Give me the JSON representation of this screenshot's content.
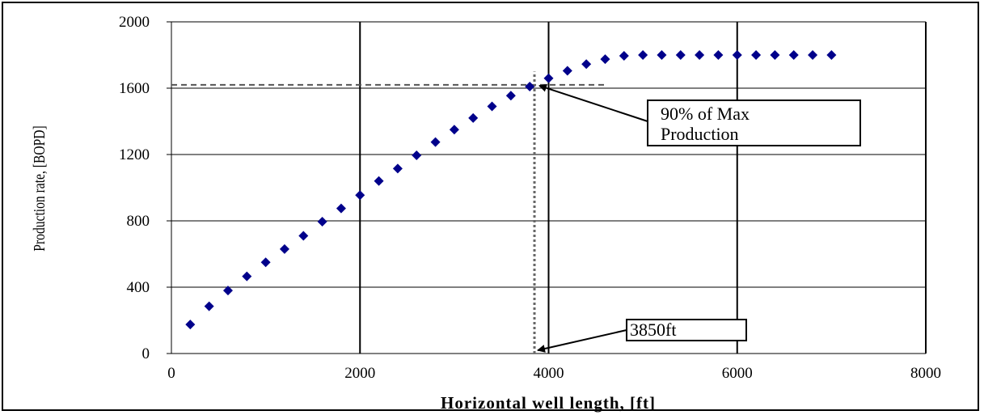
{
  "chart_data": {
    "type": "scatter",
    "title": "",
    "xlabel": "Horizontal well length, [ft]",
    "ylabel": "Production rate, [BOPD]",
    "xlim": [
      0,
      8000
    ],
    "ylim": [
      0,
      2000
    ],
    "xticks": [
      "0",
      "2000",
      "4000",
      "6000",
      "8000"
    ],
    "yticks": [
      "0",
      "400",
      "800",
      "1200",
      "1600",
      "2000"
    ],
    "grid": "major, both axes",
    "marker": "diamond",
    "color": "#00008b",
    "points": [
      {
        "x": 200,
        "y": 175
      },
      {
        "x": 400,
        "y": 285
      },
      {
        "x": 600,
        "y": 380
      },
      {
        "x": 800,
        "y": 465
      },
      {
        "x": 1000,
        "y": 550
      },
      {
        "x": 1200,
        "y": 630
      },
      {
        "x": 1400,
        "y": 710
      },
      {
        "x": 1600,
        "y": 795
      },
      {
        "x": 1800,
        "y": 875
      },
      {
        "x": 2000,
        "y": 955
      },
      {
        "x": 2200,
        "y": 1040
      },
      {
        "x": 2400,
        "y": 1115
      },
      {
        "x": 2600,
        "y": 1195
      },
      {
        "x": 2800,
        "y": 1275
      },
      {
        "x": 3000,
        "y": 1350
      },
      {
        "x": 3200,
        "y": 1420
      },
      {
        "x": 3400,
        "y": 1490
      },
      {
        "x": 3600,
        "y": 1555
      },
      {
        "x": 3800,
        "y": 1610
      },
      {
        "x": 4000,
        "y": 1660
      },
      {
        "x": 4200,
        "y": 1705
      },
      {
        "x": 4400,
        "y": 1745
      },
      {
        "x": 4600,
        "y": 1775
      },
      {
        "x": 4800,
        "y": 1795
      },
      {
        "x": 5000,
        "y": 1800
      },
      {
        "x": 5200,
        "y": 1800
      },
      {
        "x": 5400,
        "y": 1800
      },
      {
        "x": 5600,
        "y": 1800
      },
      {
        "x": 5800,
        "y": 1800
      },
      {
        "x": 6000,
        "y": 1800
      },
      {
        "x": 6200,
        "y": 1800
      },
      {
        "x": 6400,
        "y": 1800
      },
      {
        "x": 6600,
        "y": 1800
      },
      {
        "x": 6800,
        "y": 1800
      },
      {
        "x": 7000,
        "y": 1800
      }
    ],
    "reference_lines": {
      "horizontal": {
        "y": 1620,
        "x_from": 0,
        "x_to": 4600,
        "style": "dashed"
      },
      "vertical": {
        "x": 3850,
        "y_from": 0,
        "y_to": 1700,
        "style": "dotted"
      }
    },
    "annotations": [
      {
        "text_lines": [
          "90% of Max",
          "Production"
        ],
        "arrow_to": {
          "x": 3850,
          "y": 1620
        }
      },
      {
        "text_lines": [
          "3850ft"
        ],
        "arrow_to": {
          "x": 3850,
          "y": 0
        }
      }
    ]
  }
}
